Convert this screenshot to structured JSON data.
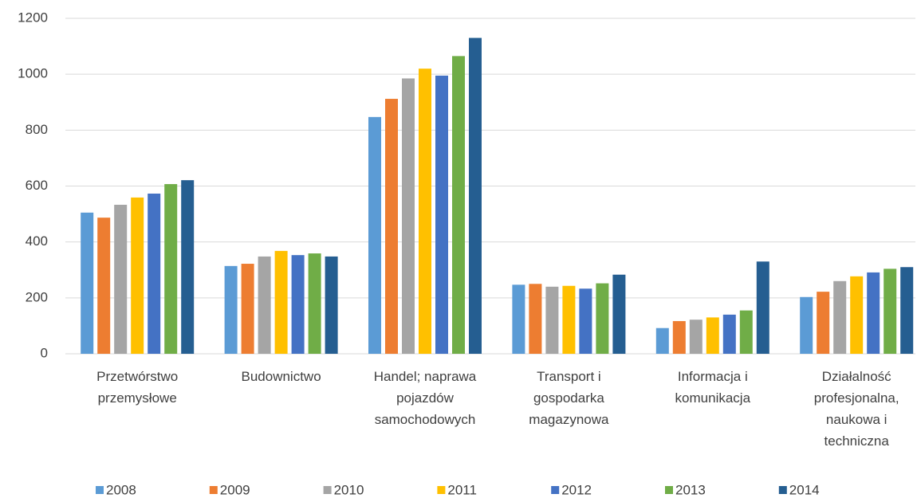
{
  "chart_data": {
    "type": "bar",
    "categories": [
      "Przetwórstwo przemysłowe",
      "Budownictwo",
      "Handel; naprawa pojazdów samochodowych",
      "Transport i gospodarka magazynowa",
      "Informacja i komunikacja",
      "Działalność profesjonalna, naukowa i techniczna"
    ],
    "series": [
      {
        "name": "2008",
        "color": "#5b9bd5",
        "values": [
          505,
          314,
          847,
          247,
          92,
          203
        ]
      },
      {
        "name": "2009",
        "color": "#ed7d31",
        "values": [
          487,
          322,
          912,
          250,
          117,
          222
        ]
      },
      {
        "name": "2010",
        "color": "#a5a5a5",
        "values": [
          533,
          348,
          985,
          240,
          122,
          260
        ]
      },
      {
        "name": "2011",
        "color": "#ffc000",
        "values": [
          559,
          368,
          1020,
          243,
          130,
          277
        ]
      },
      {
        "name": "2012",
        "color": "#4472c4",
        "values": [
          573,
          353,
          995,
          233,
          140,
          291
        ]
      },
      {
        "name": "2013",
        "color": "#70ad47",
        "values": [
          607,
          359,
          1065,
          252,
          155,
          304
        ]
      },
      {
        "name": "2014",
        "color": "#255e91",
        "values": [
          621,
          348,
          1130,
          283,
          330,
          310
        ]
      }
    ],
    "ylim": [
      0,
      1200
    ],
    "yticks": [
      0,
      200,
      400,
      600,
      800,
      1000,
      1200
    ],
    "grid": true,
    "legend": "bottom"
  }
}
